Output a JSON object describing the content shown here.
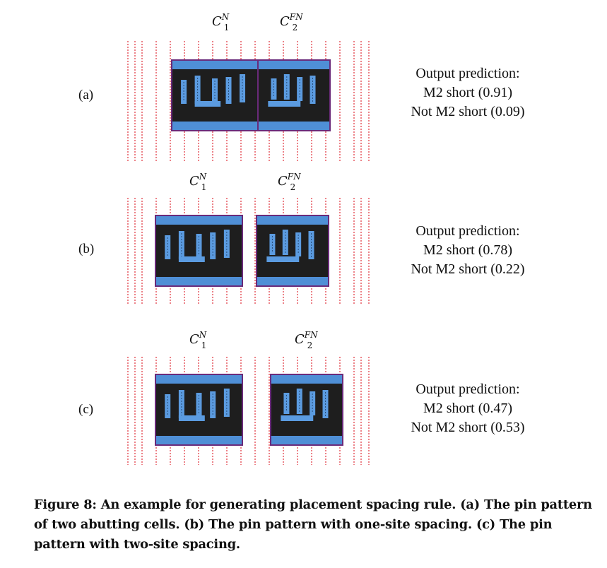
{
  "figure": {
    "panels": [
      {
        "label": "(a)",
        "cell1": {
          "base": "C",
          "sup": "N",
          "sub": "1"
        },
        "cell2": {
          "base": "C",
          "sup": "FN",
          "sub": "2"
        },
        "prediction": {
          "title": "Output prediction:",
          "line1": "M2 short (0.91)",
          "line2": "Not M2 short (0.09)"
        }
      },
      {
        "label": "(b)",
        "cell1": {
          "base": "C",
          "sup": "N",
          "sub": "1"
        },
        "cell2": {
          "base": "C",
          "sup": "FN",
          "sub": "2"
        },
        "prediction": {
          "title": "Output prediction:",
          "line1": "M2 short (0.78)",
          "line2": "Not M2 short (0.22)"
        }
      },
      {
        "label": "(c)",
        "cell1": {
          "base": "C",
          "sup": "N",
          "sub": "1"
        },
        "cell2": {
          "base": "C",
          "sup": "FN",
          "sub": "2"
        },
        "prediction": {
          "title": "Output prediction:",
          "line1": "M2 short (0.47)",
          "line2": "Not M2 short (0.53)"
        }
      }
    ],
    "colors": {
      "site_lines": "#e0303a",
      "cell_body": "#1e1e1e",
      "rail": "#4f8fd6",
      "pin": "#5b9be0",
      "cell_border": "#6a2a7a"
    }
  },
  "caption": {
    "number": "Figure 8:",
    "text": " An example for generating placement spacing rule. (a) The pin pattern of two abutting cells. (b) The pin pattern with one-site spacing. (c) The pin pattern with two-site spacing."
  }
}
